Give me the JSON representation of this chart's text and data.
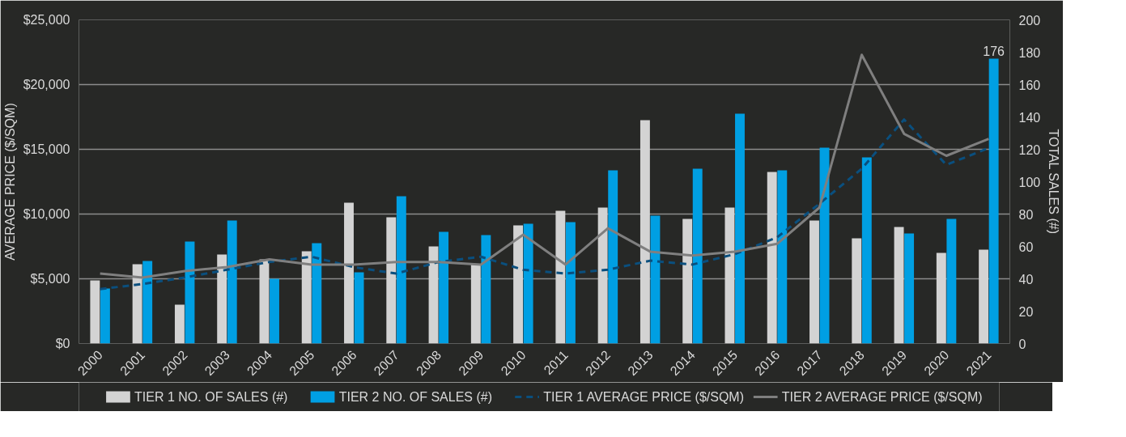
{
  "chart_data": {
    "type": "bar",
    "ylabel": "AVERAGE PRICE ($/SQM)",
    "y2label": "TOTAL SALES (#)",
    "categories": [
      "2000",
      "2001",
      "2002",
      "2003",
      "2004",
      "2005",
      "2006",
      "2007",
      "2008",
      "2009",
      "2010",
      "2011",
      "2012",
      "2013",
      "2014",
      "2015",
      "2016",
      "2017",
      "2018",
      "2019",
      "2020",
      "2021"
    ],
    "series": [
      {
        "name": "TIER 1 NO. OF SALES (#)",
        "axis": "y2",
        "color": "#d3d3d3",
        "values": [
          39,
          49,
          24,
          55,
          52,
          57,
          87,
          78,
          60,
          49,
          73,
          82,
          84,
          138,
          77,
          84,
          106,
          76,
          65,
          72,
          56,
          58
        ]
      },
      {
        "name": "TIER 2 NO. OF SALES (#)",
        "axis": "y2",
        "color": "#009fe3",
        "values": [
          34,
          51,
          63,
          76,
          40,
          62,
          44,
          91,
          69,
          67,
          74,
          75,
          107,
          79,
          108,
          142,
          107,
          121,
          115,
          68,
          77,
          176
        ],
        "value_labels": [
          null,
          null,
          null,
          null,
          null,
          null,
          null,
          null,
          null,
          null,
          null,
          null,
          null,
          null,
          null,
          null,
          null,
          null,
          null,
          null,
          null,
          "176"
        ]
      },
      {
        "name": "TIER 1 AVERAGE PRICE ($/SQM)",
        "type": "line",
        "line_style": "dashed",
        "color": "#0a4f7e",
        "values": [
          4200,
          4600,
          5100,
          5700,
          6300,
          6700,
          5900,
          5400,
          6300,
          6700,
          5700,
          5400,
          5700,
          6400,
          6100,
          6900,
          8200,
          10800,
          13500,
          17300,
          13800,
          15100
        ]
      },
      {
        "name": "TIER 2 AVERAGE PRICE ($/SQM)",
        "type": "line",
        "line_style": "solid",
        "color": "#7f7f7f",
        "values": [
          5400,
          5100,
          5600,
          5900,
          6500,
          6100,
          6100,
          6300,
          6300,
          6100,
          8400,
          6100,
          8900,
          7100,
          6800,
          7100,
          7700,
          10500,
          22300,
          16200,
          14500,
          15800
        ]
      }
    ],
    "ylim": [
      0,
      25000
    ],
    "yticks": [
      {
        "value": 0,
        "label": "$0"
      },
      {
        "value": 5000,
        "label": "$5,000"
      },
      {
        "value": 10000,
        "label": "$10,000"
      },
      {
        "value": 15000,
        "label": "$15,000"
      },
      {
        "value": 20000,
        "label": "$20,000"
      },
      {
        "value": 25000,
        "label": "$25,000"
      }
    ],
    "y2lim": [
      0,
      200
    ],
    "y2ticks": [
      0,
      20,
      40,
      60,
      80,
      100,
      120,
      140,
      160,
      180,
      200
    ],
    "grid": "y",
    "legend": "bottom"
  }
}
